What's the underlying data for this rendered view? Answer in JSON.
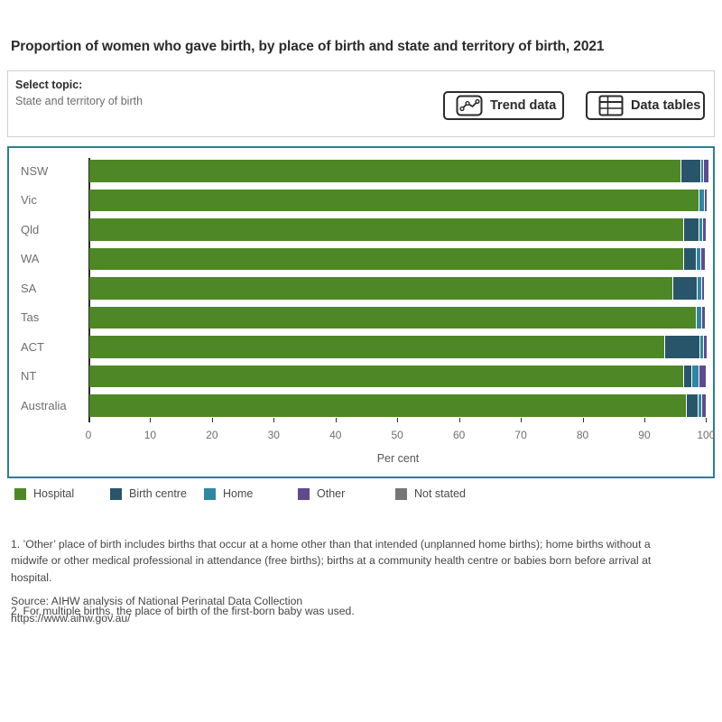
{
  "controls": {
    "select_topic_label": "Select topic:",
    "selected_topic": "State and territory of birth",
    "trend_button": "Trend data",
    "data_tables_button": "Data tables"
  },
  "colors": {
    "chart_border": "#2e7e93",
    "axis": "#2b2b2b",
    "label_gray": "#6e6e6e"
  },
  "chart_data": {
    "type": "bar",
    "orientation": "horizontal",
    "stacked": true,
    "title": "Proportion of women who gave birth, by place of birth and state and territory of birth, 2021",
    "xlabel": "Per cent",
    "ylabel": "",
    "xlim": [
      0,
      100
    ],
    "x_ticks": [
      0,
      10,
      20,
      30,
      40,
      50,
      60,
      70,
      80,
      90,
      100
    ],
    "grid": false,
    "legend_position": "bottom",
    "categories": [
      "NSW",
      "Vic",
      "Qld",
      "WA",
      "SA",
      "Tas",
      "ACT",
      "NT",
      "Australia"
    ],
    "series": [
      {
        "name": "Hospital",
        "color": "#4e8725",
        "values": [
          95.7,
          98.6,
          96.2,
          96.1,
          94.4,
          98.2,
          93.1,
          96.2,
          96.6
        ]
      },
      {
        "name": "Birth centre",
        "color": "#29556a",
        "values": [
          3.0,
          0,
          2.3,
          2.0,
          3.8,
          0,
          5.6,
          1.1,
          1.8
        ]
      },
      {
        "name": "Home",
        "color": "#2f86a2",
        "values": [
          0.4,
          0.7,
          0.4,
          0.6,
          0.6,
          0.7,
          0.4,
          1.0,
          0.4
        ]
      },
      {
        "name": "Other",
        "color": "#5d4b8e",
        "values": [
          0.7,
          0.4,
          0.5,
          0.5,
          0.3,
          0.5,
          0.4,
          1.1,
          0.5
        ]
      },
      {
        "name": "Not stated",
        "color": "#767676",
        "values": [
          0,
          0,
          0,
          0,
          0,
          0,
          0,
          0,
          0
        ]
      }
    ]
  },
  "notes": {
    "note1": "1. ’Other’ place of birth includes births that occur at a home other than that intended (unplanned home births); home births without a\nmidwife or other medical professional in attendance (free births); births at a community health centre or babies born before arrival at\nhospital.",
    "note2": "2. For multiple births, the place of birth of the first-born baby was used.",
    "source": "Source: AIHW analysis of National Perinatal Data Collection",
    "url": "https://www.aihw.gov.au/"
  }
}
